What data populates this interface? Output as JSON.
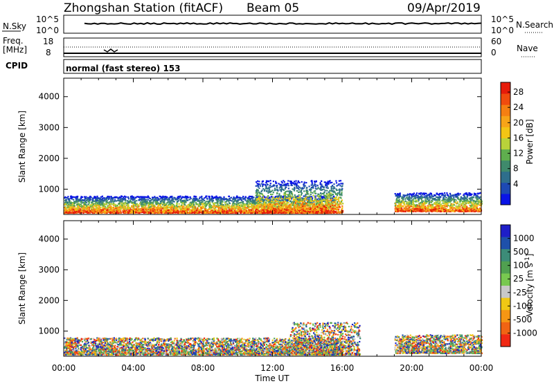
{
  "header": {
    "station": "Zhongshan Station (fitACF)",
    "beam": "Beam 05",
    "date": "09/Apr/2019"
  },
  "panels": {
    "nsky": {
      "label": "N.Sky",
      "left_ticks": [
        "10^5",
        "10^0"
      ],
      "right_label": "N.Search",
      "right_ticks": [
        "10^5",
        "10^0"
      ]
    },
    "freq": {
      "label_line1": "Freq.",
      "label_line2": "[MHz]",
      "left_ticks": [
        "18",
        "8"
      ],
      "right_label": "Nave",
      "right_ticks": [
        "60",
        "0"
      ]
    },
    "cpid": {
      "label": "CPID",
      "value": "normal (fast stereo) 153"
    }
  },
  "chart_data": [
    {
      "type": "heatmap",
      "name": "power",
      "ylabel": "Slant Range [km]",
      "xlabel": "Time UT",
      "xlim": [
        "00:00",
        "24:00"
      ],
      "ylim": [
        180,
        4600
      ],
      "yticks": [
        1000,
        2000,
        3000,
        4000
      ],
      "colorbar": {
        "label": "Power [dB]",
        "ticks": [
          "4",
          "8",
          "12",
          "16",
          "20",
          "24",
          "28"
        ],
        "colors": [
          "#0a14e6",
          "#1d49b4",
          "#2e6e8c",
          "#3f8a6c",
          "#5fae4e",
          "#b9d23a",
          "#f3c515",
          "#f7a418",
          "#f57f12",
          "#f04b0e",
          "#e61b0a"
        ]
      },
      "echo_bands": [
        {
          "time_start": "00:00",
          "time_end": "15:30",
          "range_low": 250,
          "range_high": 800
        },
        {
          "time_start": "11:00",
          "time_end": "16:00",
          "range_low": 250,
          "range_high": 1300
        },
        {
          "time_start": "19:00",
          "time_end": "24:00",
          "range_low": 300,
          "range_high": 900
        }
      ]
    },
    {
      "type": "heatmap",
      "name": "velocity",
      "ylabel": "Slant Range [km]",
      "xlabel": "Time UT",
      "xlim": [
        "00:00",
        "24:00"
      ],
      "ylim": [
        180,
        4600
      ],
      "yticks": [
        1000,
        2000,
        3000,
        4000
      ],
      "colorbar": {
        "label": "Velocity [m s^-1]",
        "ticks": [
          "1000",
          "500",
          "100",
          "25",
          "-25",
          "-100",
          "-500",
          "-1000"
        ],
        "colors": [
          "#1e1ec8",
          "#1e50aa",
          "#3c8c78",
          "#50a050",
          "#78c850",
          "#c8c8c8",
          "#f0c814",
          "#f59614",
          "#f06414",
          "#f02814"
        ]
      },
      "echo_bands": [
        {
          "time_start": "00:00",
          "time_end": "16:00",
          "range_low": 250,
          "range_high": 800
        },
        {
          "time_start": "13:00",
          "time_end": "17:00",
          "range_low": 250,
          "range_high": 1300
        },
        {
          "time_start": "19:00",
          "time_end": "24:00",
          "range_low": 300,
          "range_high": 900
        }
      ]
    }
  ],
  "time_axis": {
    "label": "Time UT",
    "ticks": [
      "00:00",
      "04:00",
      "08:00",
      "12:00",
      "16:00",
      "20:00",
      "00:00"
    ]
  }
}
